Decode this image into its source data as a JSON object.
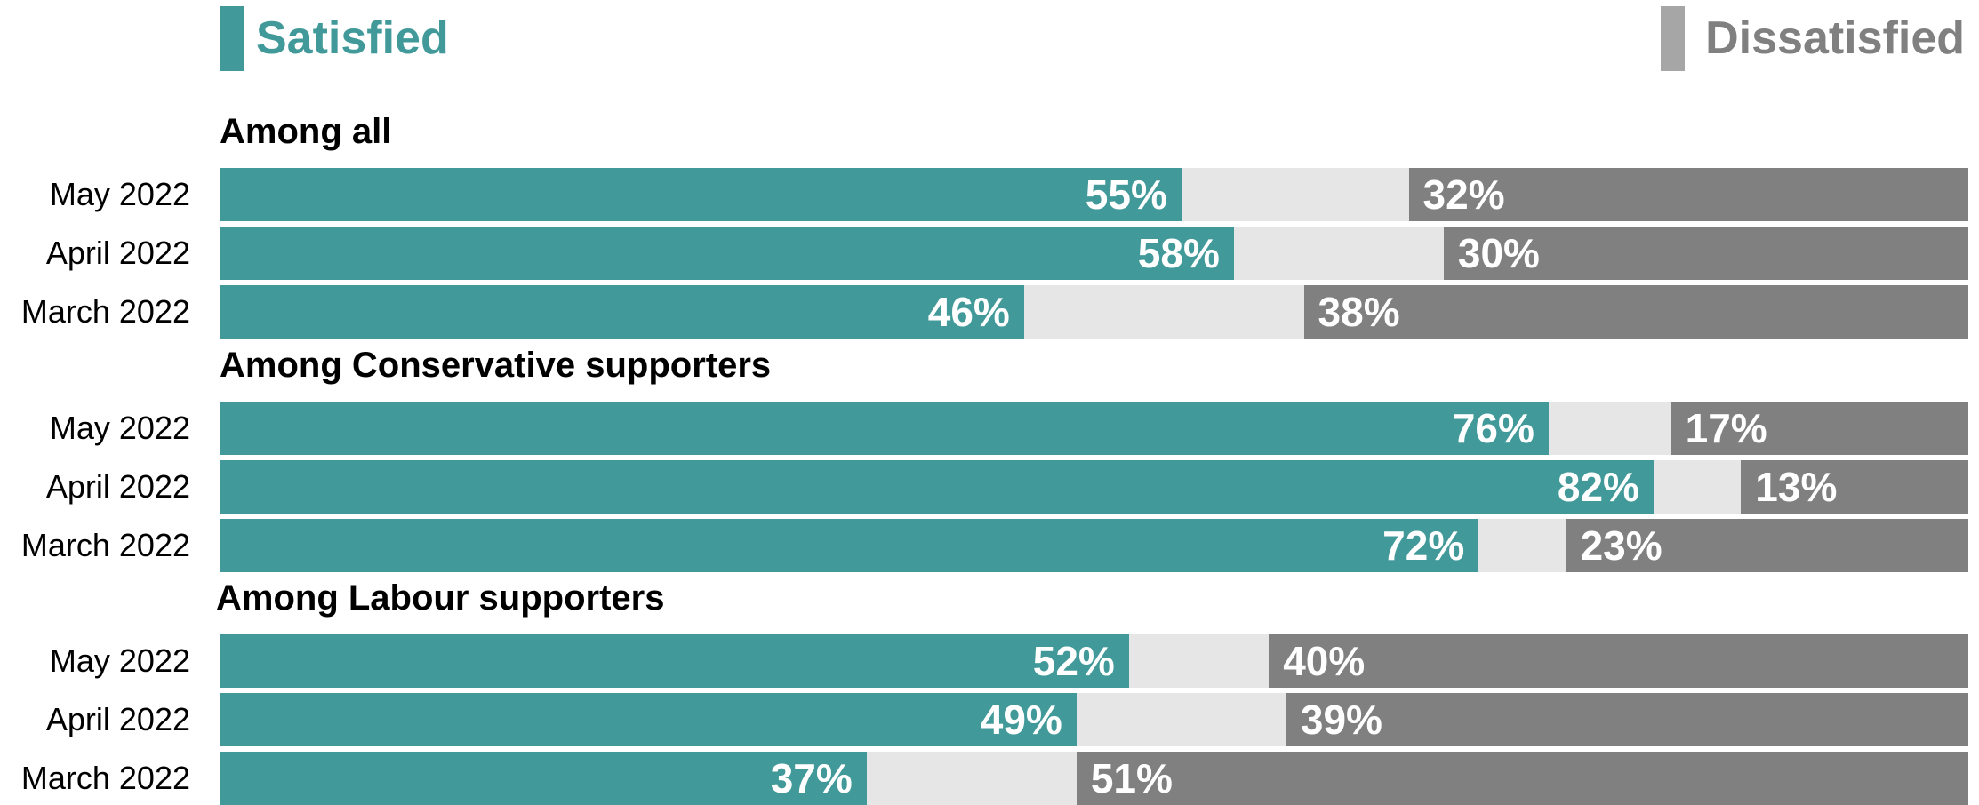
{
  "legend": {
    "satisfied_label": "Satisfied",
    "dissatisfied_label": "Dissatisfied"
  },
  "colors": {
    "satisfied": "#419a99",
    "dissatisfied": "#808080",
    "neutral": "#e6e6e6",
    "satisfied_text": "#419a99",
    "dissatisfied_text": "#808080"
  },
  "chart_data": {
    "type": "bar",
    "orientation": "horizontal",
    "stacked": true,
    "xlim": [
      0,
      100
    ],
    "series": [
      {
        "name": "Satisfied"
      },
      {
        "name": "Dissatisfied"
      }
    ],
    "groups": [
      {
        "title": "Among all",
        "rows": [
          {
            "label": "May 2022",
            "satisfied": 55,
            "dissatisfied": 32
          },
          {
            "label": "April 2022",
            "satisfied": 58,
            "dissatisfied": 30
          },
          {
            "label": "March 2022",
            "satisfied": 46,
            "dissatisfied": 38
          }
        ]
      },
      {
        "title": "Among Conservative supporters",
        "rows": [
          {
            "label": "May 2022",
            "satisfied": 76,
            "dissatisfied": 17
          },
          {
            "label": "April 2022",
            "satisfied": 82,
            "dissatisfied": 13
          },
          {
            "label": "March 2022",
            "satisfied": 72,
            "dissatisfied": 23
          }
        ]
      },
      {
        "title": "Among Labour supporters",
        "rows": [
          {
            "label": "May 2022",
            "satisfied": 52,
            "dissatisfied": 40
          },
          {
            "label": "April 2022",
            "satisfied": 49,
            "dissatisfied": 39
          },
          {
            "label": "March 2022",
            "satisfied": 37,
            "dissatisfied": 51
          }
        ]
      }
    ]
  }
}
